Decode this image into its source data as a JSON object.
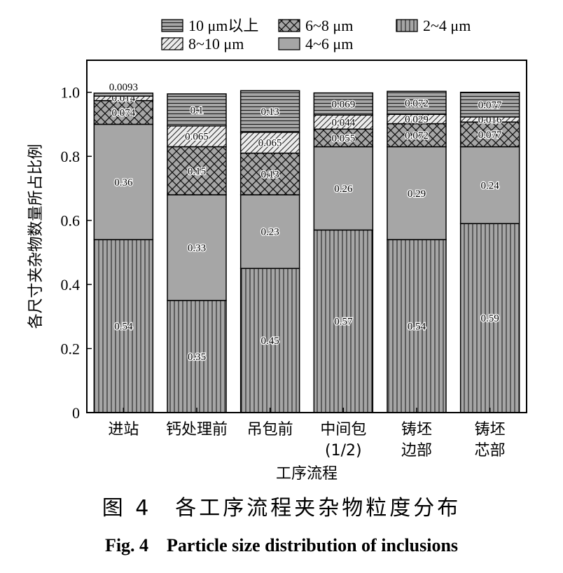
{
  "chart_data": {
    "type": "bar",
    "stacked": true,
    "xlabel": "工序流程",
    "ylabel": "各尺寸夹杂物数量所占比例",
    "ylim": [
      0,
      1.1
    ],
    "yticks": [
      0,
      0.2,
      0.4,
      0.6,
      0.8,
      1.0
    ],
    "ytick_labels": [
      "0",
      "0.2",
      "0.4",
      "0.6",
      "0.8",
      "1.0"
    ],
    "legend_position": "top",
    "categories": [
      [
        "进站"
      ],
      [
        "钙处理前"
      ],
      [
        "吊包前"
      ],
      [
        "中间包",
        "(1/2)"
      ],
      [
        "铸坯",
        "边部"
      ],
      [
        "铸坯",
        "芯部"
      ]
    ],
    "series": [
      {
        "name": "2~4 μm",
        "pattern": "vertical-lines",
        "values": [
          0.54,
          0.35,
          0.45,
          0.57,
          0.54,
          0.59
        ],
        "labels": [
          "0.54",
          "0.35",
          "0.45",
          "0.57",
          "0.54",
          "0.59"
        ]
      },
      {
        "name": "4~6 μm",
        "pattern": "solid-gray",
        "values": [
          0.36,
          0.33,
          0.23,
          0.26,
          0.29,
          0.24
        ],
        "labels": [
          "0.36",
          "0.33",
          "0.23",
          "0.26",
          "0.29",
          "0.24"
        ]
      },
      {
        "name": "6~8 μm",
        "pattern": "crosshatch",
        "values": [
          0.074,
          0.15,
          0.13,
          0.055,
          0.072,
          0.077
        ],
        "labels": [
          "0.074",
          "0.15",
          "0.13",
          "0.055",
          "0.072",
          "0.077"
        ]
      },
      {
        "name": "8~10 μm",
        "pattern": "diagonal-lines",
        "values": [
          0.014,
          0.065,
          0.065,
          0.044,
          0.029,
          0.016
        ],
        "labels": [
          "0.014",
          "0.065",
          "0.065",
          "0.044",
          "0.029",
          "0.016"
        ]
      },
      {
        "name": "10 μm以上",
        "pattern": "horizontal-lines",
        "values": [
          0.0093,
          0.1,
          0.13,
          0.069,
          0.072,
          0.077
        ],
        "labels": [
          "0.0093",
          "0.1",
          "0.13",
          "0.069",
          "0.072",
          "0.077"
        ]
      }
    ],
    "legend_order": [
      "10 μm以上",
      "6~8 μm",
      "2~4 μm",
      "8~10 μm",
      "4~6 μm"
    ],
    "colors": {
      "bar_gray": "#a6a6a6",
      "light": "#ececec",
      "line": "#000000"
    }
  },
  "caption": {
    "zh": "图 4　各工序流程夹杂物粒度分布",
    "en": "Fig. 4　Particle size distribution of inclusions"
  }
}
